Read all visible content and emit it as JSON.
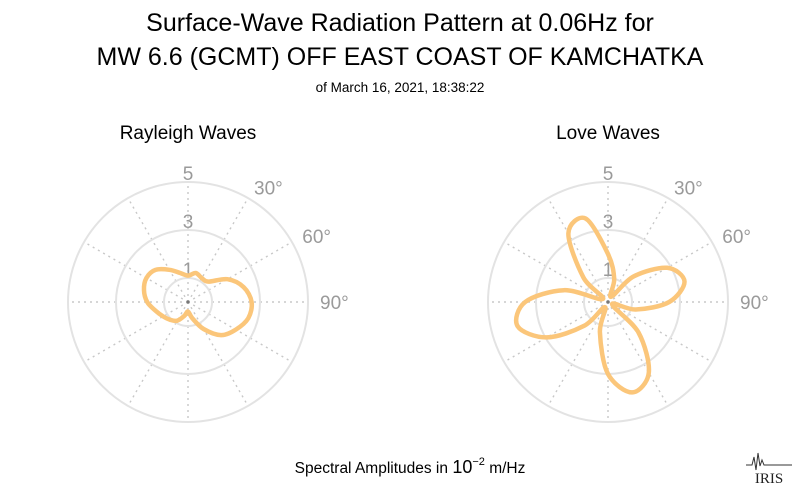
{
  "header": {
    "title_line1": "Surface-Wave Radiation Pattern at 0.06Hz for",
    "title_line2": "MW 6.6 (GCMT) OFF EAST COAST OF KAMCHATKA",
    "subtitle": "of March 16, 2021, 18:38:22"
  },
  "footer": {
    "label_prefix": "Spectral Amplitudes in ",
    "label_base": "10",
    "label_exp": "−2",
    "label_unit": " m/Hz"
  },
  "logo": {
    "text": "IRIS"
  },
  "colors": {
    "pattern": "#fbc67a",
    "grid": "#e3e3e3",
    "spoke": "#c8c8c8",
    "tick_text": "#9a9a9a"
  },
  "chart_data": [
    {
      "type": "polar-line",
      "title": "Rayleigh Waves",
      "r_ticks": [
        "1",
        "3",
        "5"
      ],
      "r_tick_values": [
        1,
        3,
        5
      ],
      "rlim": [
        0,
        5
      ],
      "angle_ticks": [
        "30°",
        "60°",
        "90°"
      ],
      "angle_tick_values": [
        30,
        60,
        90
      ],
      "spoke_step_deg": 30,
      "series": [
        {
          "theta": [
            0,
            15,
            30,
            45,
            60,
            75,
            90,
            105,
            120,
            135,
            150,
            165,
            180,
            195,
            210,
            225,
            240,
            255,
            270,
            285,
            300,
            315,
            330,
            345
          ],
          "r": [
            1.1,
            1.25,
            1.15,
            1.2,
            1.9,
            2.4,
            2.65,
            2.6,
            2.3,
            1.95,
            1.3,
            0.7,
            0.4,
            0.6,
            0.9,
            1.05,
            1.2,
            1.4,
            1.7,
            1.9,
            2.0,
            1.9,
            1.55,
            1.25
          ]
        }
      ]
    },
    {
      "type": "polar-line",
      "title": "Love Waves",
      "r_ticks": [
        "1",
        "3",
        "5"
      ],
      "r_tick_values": [
        1,
        3,
        5
      ],
      "rlim": [
        0,
        5
      ],
      "angle_ticks": [
        "30°",
        "60°",
        "90°"
      ],
      "angle_tick_values": [
        30,
        60,
        90
      ],
      "spoke_step_deg": 30,
      "series": [
        {
          "theta": [
            0,
            15,
            30,
            45,
            60,
            75,
            90,
            105,
            120,
            135,
            150,
            165,
            180,
            195,
            210,
            225,
            240,
            255,
            270,
            285,
            300,
            315,
            330,
            345
          ],
          "r": [
            2.0,
            1.0,
            0.25,
            1.5,
            2.85,
            3.3,
            2.55,
            1.2,
            0.2,
            1.8,
            3.4,
            3.9,
            3.0,
            1.3,
            0.25,
            1.4,
            2.95,
            3.9,
            3.45,
            1.9,
            0.25,
            1.45,
            3.3,
            3.6
          ]
        }
      ]
    }
  ]
}
